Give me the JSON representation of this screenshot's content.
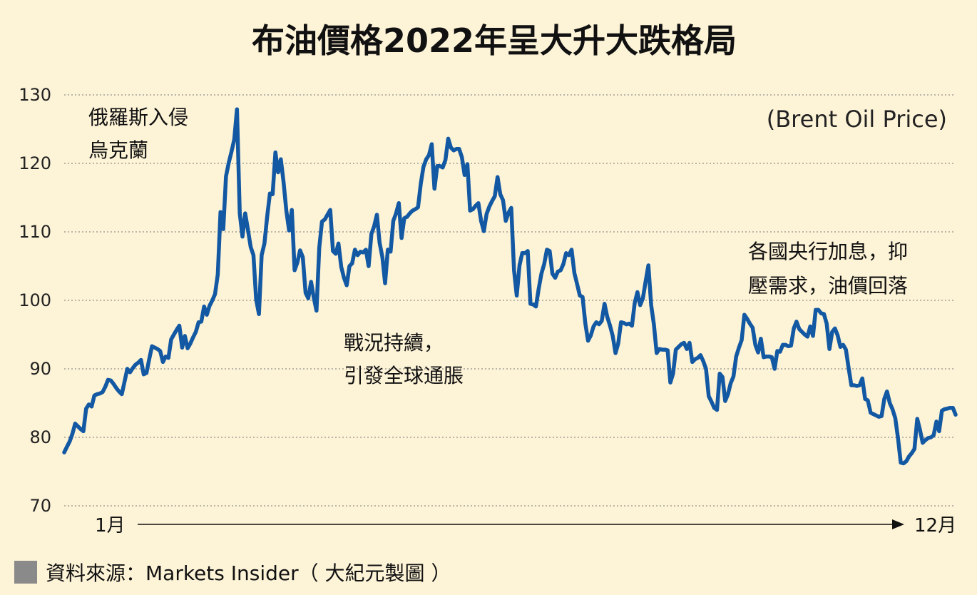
{
  "chart_data": {
    "type": "line",
    "title": "布油價格2022年呈大升大跌格局",
    "subtitle": "(Brent Oil Price)",
    "xlabel": "",
    "ylabel": "",
    "ylim": [
      70,
      130
    ],
    "yticks": [
      130,
      120,
      110,
      100,
      90,
      80,
      70
    ],
    "x_start_label": "1月",
    "x_end_label": "12月",
    "grid": true,
    "annotations": [
      {
        "lines": [
          "俄羅斯入侵",
          "烏克蘭"
        ]
      },
      {
        "lines": [
          "戰況持續，",
          "引發全球通脹"
        ]
      },
      {
        "lines": [
          "各國央行加息，抑",
          "壓需求，油價回落"
        ]
      }
    ],
    "series": [
      {
        "name": "Brent Oil Price",
        "color": "#1258a3",
        "values": [
          77.8,
          78.6,
          79.4,
          80.5,
          82.0,
          81.6,
          81.2,
          80.9,
          84.2,
          84.8,
          84.5,
          86.1,
          86.3,
          86.4,
          86.6,
          87.4,
          88.4,
          88.3,
          87.8,
          87.2,
          86.7,
          86.3,
          88.1,
          90.0,
          89.5,
          90.1,
          90.6,
          90.9,
          91.3,
          89.2,
          89.4,
          91.4,
          93.3,
          93.1,
          92.9,
          92.6,
          91.0,
          91.8,
          91.6,
          94.3,
          95.0,
          95.7,
          96.3,
          93.1,
          94.8,
          93.0,
          93.7,
          94.6,
          95.4,
          96.8,
          96.9,
          99.1,
          97.9,
          99.2,
          100.0,
          100.9,
          103.8,
          112.9,
          110.4,
          118.1,
          120.1,
          121.7,
          123.5,
          127.9,
          112.7,
          109.3,
          112.7,
          110.3,
          107.8,
          106.6,
          100.1,
          98.0,
          106.6,
          108.3,
          112.2,
          115.6,
          115.5,
          121.6,
          118.7,
          120.6,
          117.2,
          113.1,
          110.2,
          113.2,
          104.4,
          105.5,
          107.3,
          106.3,
          101.1,
          100.3,
          102.7,
          100.4,
          98.5,
          107.7,
          111.5,
          111.8,
          112.5,
          113.2,
          107.2,
          106.8,
          108.3,
          104.9,
          103.3,
          102.2,
          105.0,
          105.4,
          107.4,
          106.6,
          107.1,
          107.0,
          107.4,
          105.0,
          109.7,
          110.8,
          112.5,
          108.4,
          106.3,
          102.5,
          107.4,
          107.1,
          111.6,
          112.7,
          114.2,
          109.1,
          112.0,
          112.2,
          112.7,
          113.1,
          113.3,
          113.6,
          117.0,
          119.5,
          120.6,
          121.2,
          122.8,
          116.3,
          119.6,
          119.6,
          119.4,
          120.5,
          123.6,
          122.3,
          121.9,
          122.1,
          122.1,
          120.9,
          118.3,
          119.9,
          113.1,
          113.3,
          113.8,
          114.2,
          111.6,
          110.1,
          112.6,
          113.7,
          114.5,
          115.2,
          118.0,
          115.5,
          114.6,
          111.6,
          112.8,
          113.5,
          104.4,
          100.7,
          105.1,
          106.9,
          106.9,
          107.2,
          99.5,
          99.4,
          99.1,
          101.7,
          103.9,
          105.3,
          107.4,
          107.2,
          103.9,
          103.3,
          104.2,
          104.4,
          105.3,
          106.9,
          106.6,
          107.4,
          104.0,
          102.4,
          100.7,
          100.5,
          96.6,
          94.1,
          94.9,
          96.2,
          96.8,
          96.5,
          97.0,
          99.5,
          97.6,
          96.3,
          94.8,
          92.3,
          93.7,
          96.8,
          96.7,
          96.5,
          96.6,
          96.3,
          99.6,
          101.2,
          99.3,
          100.3,
          102.8,
          105.1,
          99.3,
          96.5,
          92.3,
          92.9,
          92.8,
          92.8,
          92.7,
          88.0,
          89.3,
          92.8,
          93.2,
          93.6,
          93.8,
          92.9,
          93.8,
          91.0,
          91.4,
          91.6,
          92.0,
          91.1,
          90.0,
          86.0,
          85.2,
          84.3,
          84.0,
          89.3,
          88.8,
          85.3,
          86.3,
          87.9,
          88.9,
          91.8,
          93.1,
          94.2,
          97.9,
          97.3,
          96.6,
          96.0,
          93.5,
          92.4,
          94.4,
          91.7,
          91.8,
          91.8,
          91.7,
          90.0,
          92.6,
          92.5,
          93.5,
          93.5,
          93.3,
          93.4,
          95.9,
          96.9,
          95.8,
          95.4,
          95.0,
          94.7,
          96.2,
          94.8,
          98.6,
          98.6,
          98.1,
          98.0,
          96.6,
          92.9,
          95.4,
          95.9,
          94.9,
          93.2,
          93.5,
          92.8,
          90.1,
          87.6,
          87.6,
          87.5,
          87.6,
          88.6,
          85.6,
          85.4,
          83.6,
          83.4,
          83.2,
          83.0,
          83.1,
          85.6,
          86.7,
          85.0,
          84.1,
          82.8,
          79.9,
          76.3,
          76.2,
          76.5,
          77.2,
          77.7,
          78.3,
          82.7,
          81.1,
          79.2,
          79.6,
          79.9,
          80.0,
          80.3,
          82.3,
          80.9,
          83.9,
          84.1,
          84.2,
          84.3,
          84.3,
          83.3
        ]
      }
    ]
  },
  "footer": {
    "source": "資料來源：Markets Insider（ 大紀元製圖 ）"
  }
}
